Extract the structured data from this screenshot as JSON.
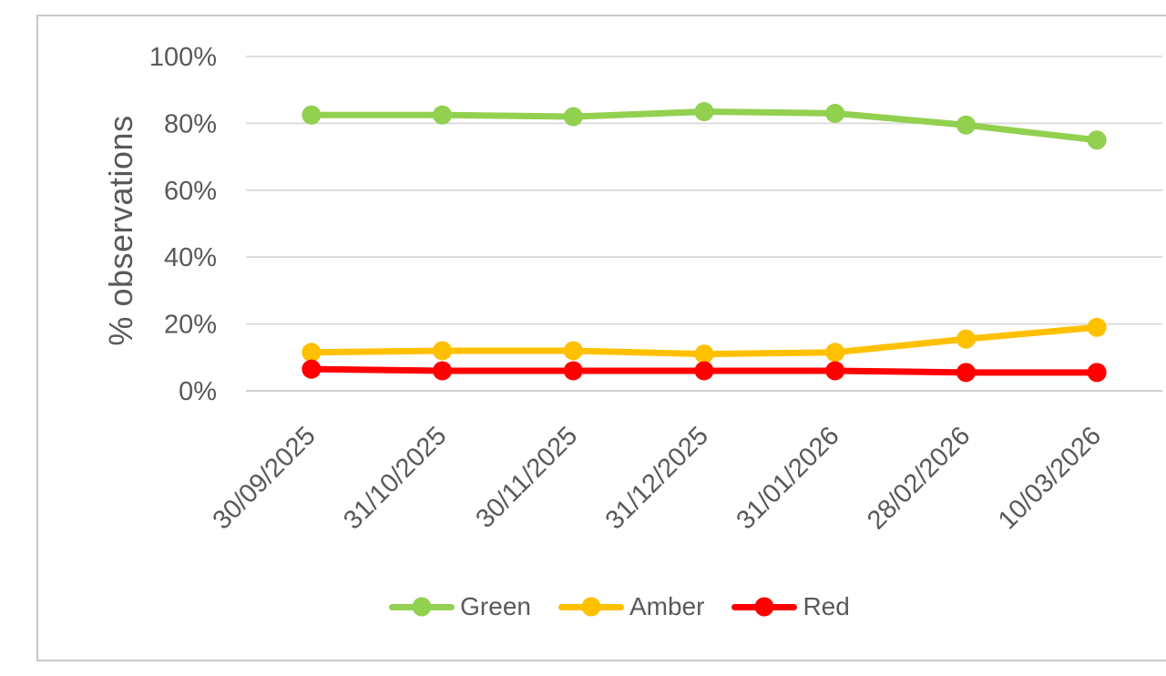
{
  "chart_data": {
    "type": "line",
    "title": "",
    "xlabel": "",
    "ylabel": "% observations",
    "categories": [
      "30/09/2025",
      "31/10/2025",
      "30/11/2025",
      "31/12/2025",
      "31/01/2026",
      "28/02/2026",
      "10/03/2026"
    ],
    "series": [
      {
        "name": "Green",
        "color": "#92D050",
        "values": [
          82.5,
          82.5,
          82,
          83.5,
          83,
          79.5,
          75
        ]
      },
      {
        "name": "Amber",
        "color": "#FFC000",
        "values": [
          11.5,
          12,
          12,
          11,
          11.5,
          15.5,
          19
        ]
      },
      {
        "name": "Red",
        "color": "#FF0000",
        "values": [
          6.5,
          6,
          6,
          6,
          6,
          5.5,
          5.5
        ]
      }
    ],
    "ylim": [
      0,
      100
    ],
    "y_ticks": [
      "0%",
      "20%",
      "40%",
      "60%",
      "80%",
      "100%"
    ],
    "grid": true,
    "legend_position": "bottom",
    "legend": [
      "Green",
      "Amber",
      "Red"
    ],
    "x_label_rotation": -45
  },
  "styles": {
    "text_color": "#595959",
    "grid_color": "#D9D9D9",
    "axis_line_color": "#C9C9C9",
    "background": "#FFFFFF",
    "border_color": "#C8C8C8"
  }
}
